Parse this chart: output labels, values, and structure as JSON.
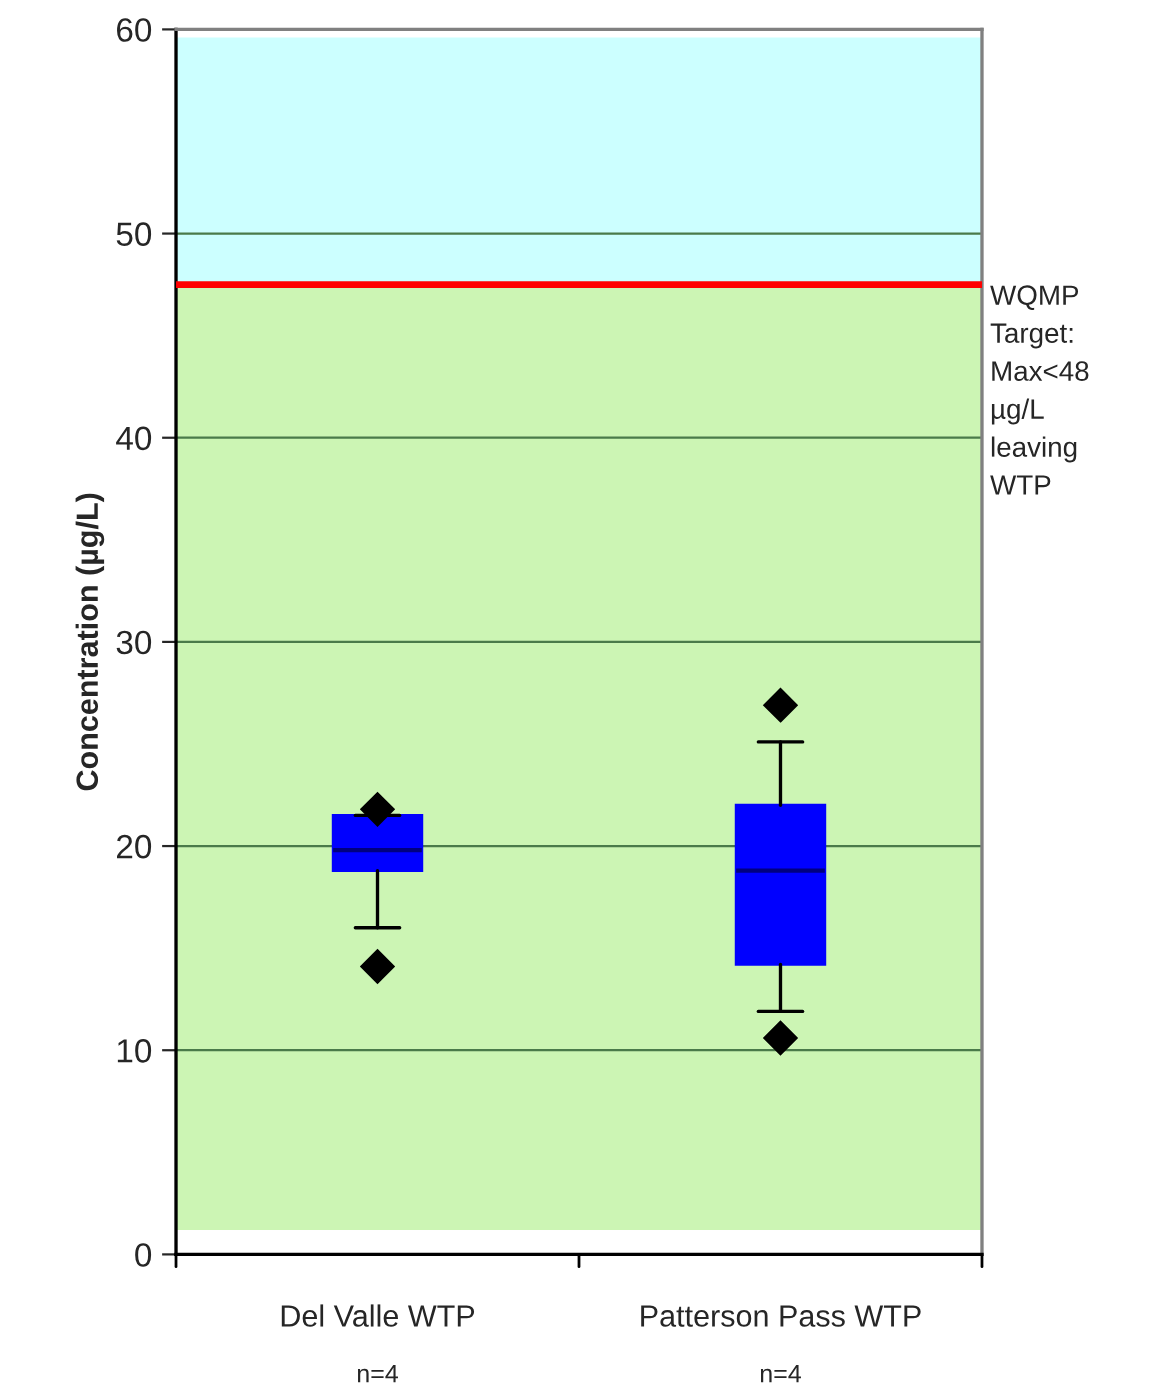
{
  "chart_data": {
    "type": "box",
    "ylabel": "Concentration (µg/L)",
    "categories": [
      "Del Valle WTP",
      "Patterson Pass WTP"
    ],
    "boxes": [
      {
        "low": 16.0,
        "q1": 18.8,
        "median": 19.8,
        "q3": 21.5,
        "high": 21.5,
        "outliers": [
          21.8,
          14.1
        ]
      },
      {
        "low": 11.9,
        "q1": 14.2,
        "median": 18.8,
        "q3": 22.0,
        "high": 25.1,
        "outliers": [
          26.9,
          10.6
        ]
      }
    ],
    "color": "#0000ff",
    "ylim": [
      0,
      60
    ],
    "yticks": [
      0,
      10,
      20,
      30,
      40,
      50,
      60
    ],
    "grid": "y",
    "ref_lines": [
      {
        "axis": "y",
        "value": 47.5,
        "label": "WQMP Target: Max<48 µg/L leaving WTP",
        "color": "#ff0000"
      }
    ],
    "bands": [
      {
        "axis": "y",
        "from": 1.2,
        "to": 47.5,
        "label": null,
        "color": "#ccf5b4"
      },
      {
        "axis": "y",
        "from": 47.5,
        "to": 59.6,
        "label": null,
        "color": "#ccffff"
      }
    ],
    "annotations": [
      "n=4",
      "n=4"
    ]
  }
}
